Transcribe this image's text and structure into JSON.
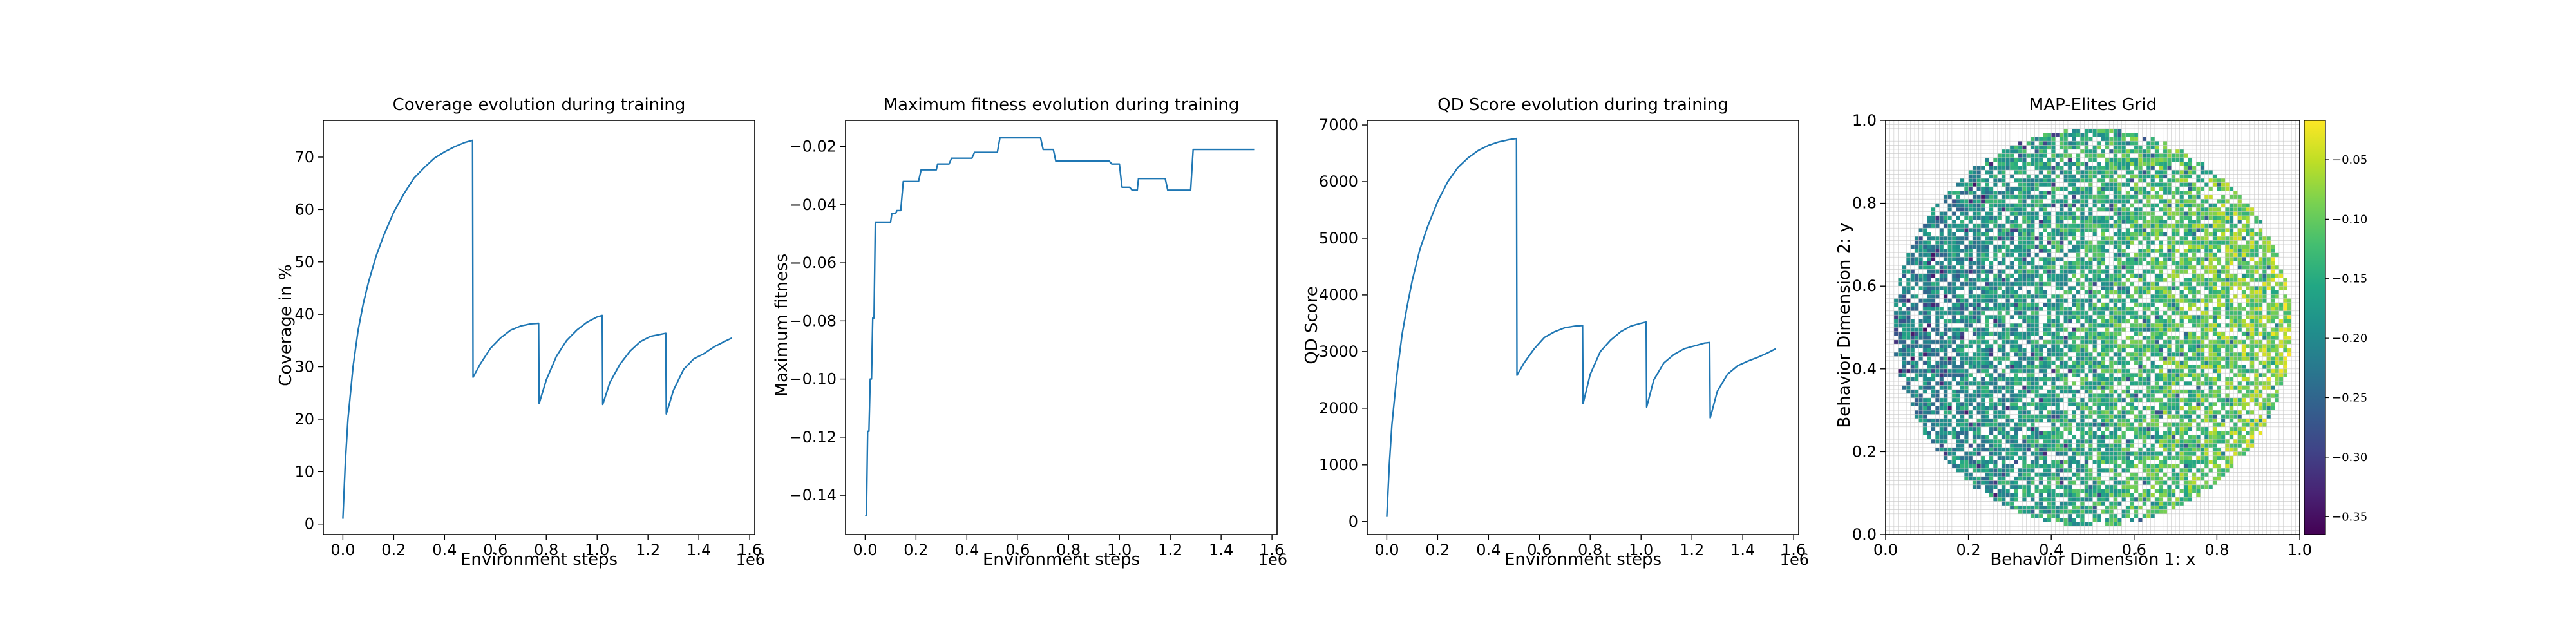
{
  "figure": {
    "background": "#ffffff",
    "line_color": "#1f77b4"
  },
  "chart_data": [
    {
      "type": "line",
      "title": "Coverage evolution during training",
      "xlabel": "Environment steps",
      "ylabel": "Coverage in %",
      "x_offset_label": "1e6",
      "xlim": [
        -0.077,
        1.62
      ],
      "ylim": [
        -2.0,
        77.0
      ],
      "x_ticks": [
        0.0,
        0.2,
        0.4,
        0.6,
        0.8,
        1.0,
        1.2,
        1.4,
        1.6
      ],
      "x_tick_labels": [
        "0.0",
        "0.2",
        "0.4",
        "0.6",
        "0.8",
        "1.0",
        "1.2",
        "1.4",
        "1.6"
      ],
      "y_ticks": [
        0,
        10,
        20,
        30,
        40,
        50,
        60,
        70
      ],
      "y_tick_labels": [
        "0",
        "10",
        "20",
        "30",
        "40",
        "50",
        "60",
        "70"
      ],
      "series": [
        {
          "x": [
            0.0,
            0.01,
            0.02,
            0.04,
            0.06,
            0.08,
            0.1,
            0.13,
            0.16,
            0.2,
            0.24,
            0.28,
            0.32,
            0.36,
            0.4,
            0.44,
            0.48,
            0.51,
            0.512,
            0.54,
            0.58,
            0.62,
            0.66,
            0.7,
            0.74,
            0.77,
            0.772,
            0.8,
            0.84,
            0.88,
            0.92,
            0.96,
            1.0,
            1.02,
            1.022,
            1.05,
            1.09,
            1.13,
            1.17,
            1.21,
            1.25,
            1.27,
            1.272,
            1.3,
            1.34,
            1.38,
            1.42,
            1.46,
            1.5,
            1.53
          ],
          "y": [
            1.0,
            12.0,
            20.0,
            30.0,
            37.0,
            42.0,
            46.0,
            51.0,
            55.0,
            59.5,
            63.0,
            66.0,
            68.0,
            69.8,
            71.0,
            72.0,
            72.8,
            73.2,
            28.0,
            30.5,
            33.5,
            35.5,
            37.0,
            37.8,
            38.2,
            38.3,
            23.0,
            27.5,
            32.0,
            35.0,
            37.0,
            38.5,
            39.5,
            39.8,
            22.8,
            27.0,
            30.5,
            33.0,
            34.8,
            35.8,
            36.2,
            36.4,
            21.0,
            25.5,
            29.5,
            31.5,
            32.5,
            33.8,
            34.8,
            35.5
          ]
        }
      ]
    },
    {
      "type": "line",
      "title": "Maximum fitness evolution during training",
      "xlabel": "Environment steps",
      "ylabel": "Maximum fitness",
      "x_offset_label": "1e6",
      "xlim": [
        -0.077,
        1.62
      ],
      "ylim": [
        -0.1535,
        -0.011
      ],
      "x_ticks": [
        0.0,
        0.2,
        0.4,
        0.6,
        0.8,
        1.0,
        1.2,
        1.4,
        1.6
      ],
      "x_tick_labels": [
        "0.0",
        "0.2",
        "0.4",
        "0.6",
        "0.8",
        "1.0",
        "1.2",
        "1.4",
        "1.6"
      ],
      "y_ticks": [
        -0.14,
        -0.12,
        -0.1,
        -0.08,
        -0.06,
        -0.04,
        -0.02
      ],
      "y_tick_labels": [
        "−0.14",
        "−0.12",
        "−0.10",
        "−0.08",
        "−0.06",
        "−0.04",
        "−0.02"
      ],
      "series": [
        {
          "x": [
            0.0,
            0.005,
            0.01,
            0.015,
            0.02,
            0.025,
            0.03,
            0.035,
            0.04,
            0.045,
            0.05,
            0.1,
            0.105,
            0.12,
            0.125,
            0.14,
            0.15,
            0.21,
            0.22,
            0.28,
            0.285,
            0.33,
            0.34,
            0.42,
            0.43,
            0.52,
            0.53,
            0.69,
            0.7,
            0.74,
            0.75,
            0.96,
            0.97,
            1.0,
            1.01,
            1.04,
            1.05,
            1.07,
            1.075,
            1.08,
            1.09,
            1.1,
            1.18,
            1.19,
            1.28,
            1.29,
            1.53
          ],
          "y": [
            -0.147,
            -0.147,
            -0.118,
            -0.118,
            -0.1,
            -0.1,
            -0.079,
            -0.079,
            -0.046,
            -0.046,
            -0.046,
            -0.046,
            -0.043,
            -0.043,
            -0.042,
            -0.042,
            -0.032,
            -0.032,
            -0.028,
            -0.028,
            -0.026,
            -0.026,
            -0.024,
            -0.024,
            -0.022,
            -0.022,
            -0.017,
            -0.017,
            -0.021,
            -0.021,
            -0.025,
            -0.025,
            -0.026,
            -0.026,
            -0.034,
            -0.034,
            -0.035,
            -0.035,
            -0.031,
            -0.031,
            -0.031,
            -0.031,
            -0.031,
            -0.035,
            -0.035,
            -0.021,
            -0.021
          ]
        }
      ]
    },
    {
      "type": "line",
      "title": "QD Score evolution during training",
      "xlabel": "Environment steps",
      "ylabel": "QD Score",
      "x_offset_label": "1e6",
      "xlim": [
        -0.077,
        1.62
      ],
      "ylim": [
        -230,
        7080
      ],
      "x_ticks": [
        0.0,
        0.2,
        0.4,
        0.6,
        0.8,
        1.0,
        1.2,
        1.4,
        1.6
      ],
      "x_tick_labels": [
        "0.0",
        "0.2",
        "0.4",
        "0.6",
        "0.8",
        "1.0",
        "1.2",
        "1.4",
        "1.6"
      ],
      "y_ticks": [
        0,
        1000,
        2000,
        3000,
        4000,
        5000,
        6000,
        7000
      ],
      "y_tick_labels": [
        "0",
        "1000",
        "2000",
        "3000",
        "4000",
        "5000",
        "6000",
        "7000"
      ],
      "series": [
        {
          "x": [
            0.0,
            0.01,
            0.02,
            0.04,
            0.06,
            0.08,
            0.1,
            0.13,
            0.16,
            0.2,
            0.24,
            0.28,
            0.32,
            0.36,
            0.4,
            0.44,
            0.48,
            0.51,
            0.512,
            0.54,
            0.58,
            0.62,
            0.66,
            0.7,
            0.74,
            0.77,
            0.772,
            0.8,
            0.84,
            0.88,
            0.92,
            0.96,
            1.0,
            1.02,
            1.022,
            1.05,
            1.09,
            1.13,
            1.17,
            1.21,
            1.25,
            1.27,
            1.272,
            1.3,
            1.34,
            1.38,
            1.42,
            1.46,
            1.5,
            1.53
          ],
          "y": [
            80,
            1000,
            1700,
            2600,
            3300,
            3800,
            4250,
            4800,
            5200,
            5650,
            6000,
            6250,
            6420,
            6550,
            6640,
            6700,
            6740,
            6760,
            2580,
            2800,
            3050,
            3250,
            3350,
            3420,
            3450,
            3460,
            2080,
            2600,
            3000,
            3200,
            3350,
            3450,
            3500,
            3520,
            2020,
            2500,
            2800,
            2950,
            3050,
            3100,
            3150,
            3160,
            1830,
            2300,
            2600,
            2750,
            2830,
            2900,
            2980,
            3050
          ]
        }
      ]
    },
    {
      "type": "heatmap",
      "title": "MAP-Elites Grid",
      "xlabel": "Behavior Dimension 1: x",
      "ylabel": "Behavior Dimension 2: y",
      "xlim": [
        0.0,
        1.0
      ],
      "ylim": [
        0.0,
        1.0
      ],
      "x_ticks": [
        0.0,
        0.2,
        0.4,
        0.6,
        0.8,
        1.0
      ],
      "x_tick_labels": [
        "0.0",
        "0.2",
        "0.4",
        "0.6",
        "0.8",
        "1.0"
      ],
      "y_ticks": [
        0.0,
        0.2,
        0.4,
        0.6,
        0.8,
        1.0
      ],
      "y_tick_labels": [
        "0.0",
        "0.2",
        "0.4",
        "0.6",
        "0.8",
        "1.0"
      ],
      "grid": true,
      "grid_cells": 100,
      "colormap": "viridis",
      "colorbar_range": [
        -0.365,
        -0.017
      ],
      "colorbar_ticks": [
        -0.35,
        -0.3,
        -0.25,
        -0.2,
        -0.15,
        -0.1,
        -0.05
      ],
      "colorbar_tick_labels": [
        "−0.35",
        "−0.30",
        "−0.25",
        "−0.20",
        "−0.15",
        "−0.10",
        "−0.05"
      ],
      "filled_region": {
        "shape": "disk",
        "center": [
          0.5,
          0.5
        ],
        "radius": 0.48,
        "fill_density": 0.72
      },
      "value_trend": {
        "left": -0.22,
        "right": -0.07,
        "noise": 0.06
      }
    }
  ]
}
